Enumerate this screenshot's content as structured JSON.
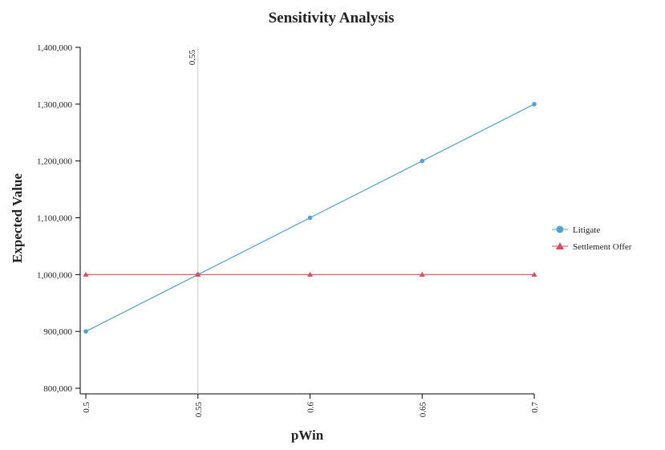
{
  "chart_data": {
    "type": "line",
    "title": "Sensitivity Analysis",
    "x_label": "pWin",
    "y_label": "Expected Value",
    "x": [
      0.5,
      0.55,
      0.6,
      0.65,
      0.7
    ],
    "series": [
      {
        "name": "Litigate",
        "color": "#4fa3d1",
        "marker": "circle",
        "values": [
          900000,
          1000000,
          1100000,
          1200000,
          1300000
        ]
      },
      {
        "name": "Settlement Offer",
        "color": "#e04a5a",
        "marker": "triangle",
        "values": [
          1000000,
          1000000,
          1000000,
          1000000,
          1000000
        ]
      }
    ],
    "xlim": [
      0.5,
      0.7
    ],
    "xticks": [
      0.5,
      0.55,
      0.6,
      0.65,
      0.7
    ],
    "ylim": [
      800000,
      1400000
    ],
    "yticks": [
      {
        "value": 800000,
        "label": "800,000"
      },
      {
        "value": 900000,
        "label": "900,000"
      },
      {
        "value": 1000000,
        "label": "1,000,000"
      },
      {
        "value": 1100000,
        "label": "1,100,000"
      },
      {
        "value": 1200000,
        "label": "1,200,000"
      },
      {
        "value": 1300000,
        "label": "1,300,000"
      },
      {
        "value": 1400000,
        "label": "1,400,000"
      }
    ],
    "reference_line": {
      "x": 0.55,
      "color": "#c8c8c8"
    },
    "legend": "right"
  }
}
